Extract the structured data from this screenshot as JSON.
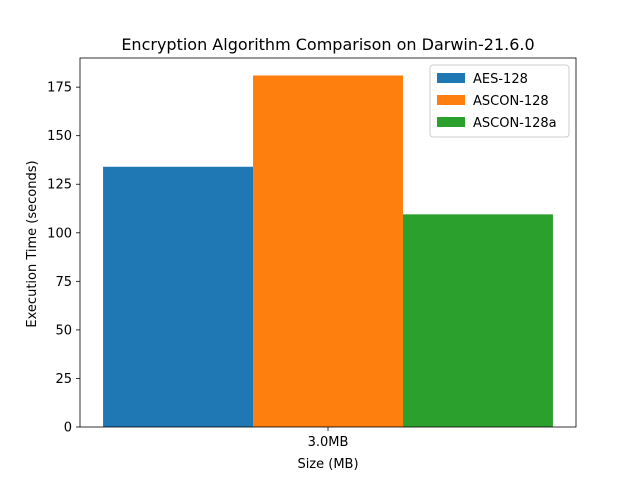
{
  "chart_data": {
    "type": "bar",
    "title": "Encryption Algorithm Comparison on Darwin-21.6.0",
    "xlabel": "Size (MB)",
    "ylabel": "Execution Time (seconds)",
    "categories": [
      "3.0MB"
    ],
    "series": [
      {
        "name": "AES-128",
        "values": [
          134
        ],
        "color": "#1f77b4"
      },
      {
        "name": "ASCON-128",
        "values": [
          181
        ],
        "color": "#ff7f0e"
      },
      {
        "name": "ASCON-128a",
        "values": [
          109.5
        ],
        "color": "#2ca02c"
      }
    ],
    "ylim": [
      0,
      190
    ],
    "yticks": [
      0,
      25,
      50,
      75,
      100,
      125,
      150,
      175
    ],
    "grid": false,
    "legend_position": "top-right"
  }
}
